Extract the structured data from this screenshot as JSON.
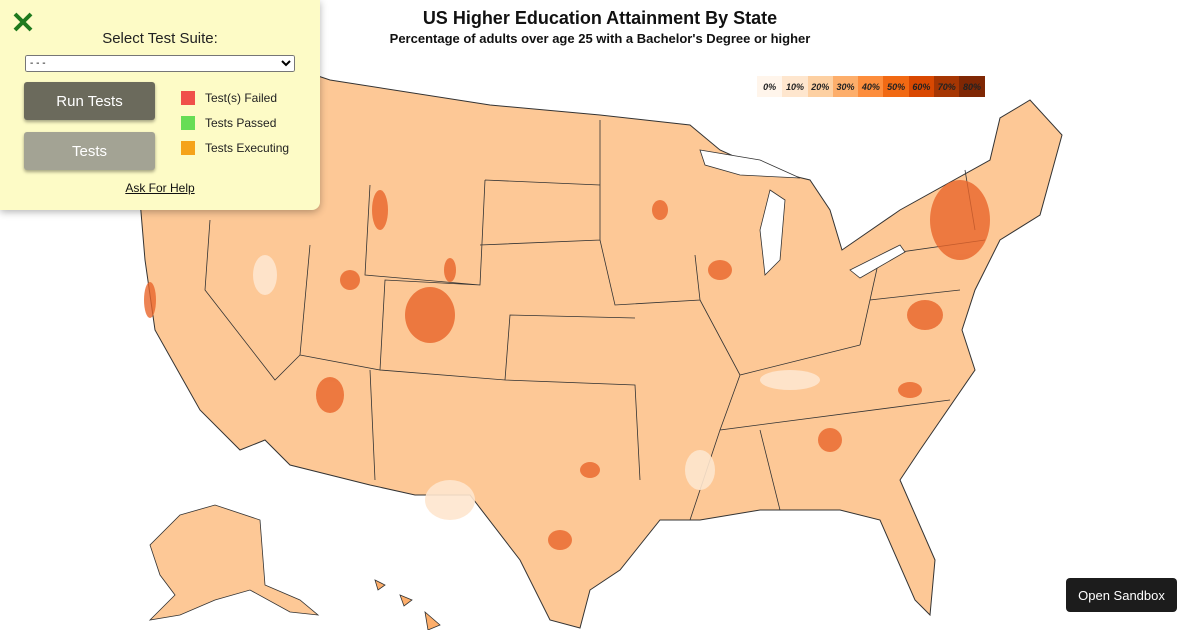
{
  "header": {
    "title": "US Higher Education Attainment By State",
    "subtitle": "Percentage of adults over age 25 with a Bachelor's Degree or higher"
  },
  "legend": {
    "items": [
      {
        "label": "0%",
        "color": "#fff5eb"
      },
      {
        "label": "10%",
        "color": "#fee6ce"
      },
      {
        "label": "20%",
        "color": "#fdd0a2"
      },
      {
        "label": "30%",
        "color": "#fdae6b"
      },
      {
        "label": "40%",
        "color": "#fd8d3c"
      },
      {
        "label": "50%",
        "color": "#f16913"
      },
      {
        "label": "60%",
        "color": "#d94801"
      },
      {
        "label": "70%",
        "color": "#a63603"
      },
      {
        "label": "80%",
        "color": "#7f2704"
      }
    ]
  },
  "test_panel": {
    "select_label": "Select Test Suite:",
    "select_value": "- - -",
    "buttons": [
      "Run Tests",
      "Tests"
    ],
    "status_legend": [
      {
        "label": "Test(s) Failed",
        "color": "#f0504a"
      },
      {
        "label": "Tests Passed",
        "color": "#66dd55"
      },
      {
        "label": "Tests Executing",
        "color": "#f5a31a"
      }
    ],
    "help_link": "Ask For Help"
  },
  "sandbox_button": "Open Sandbox"
}
